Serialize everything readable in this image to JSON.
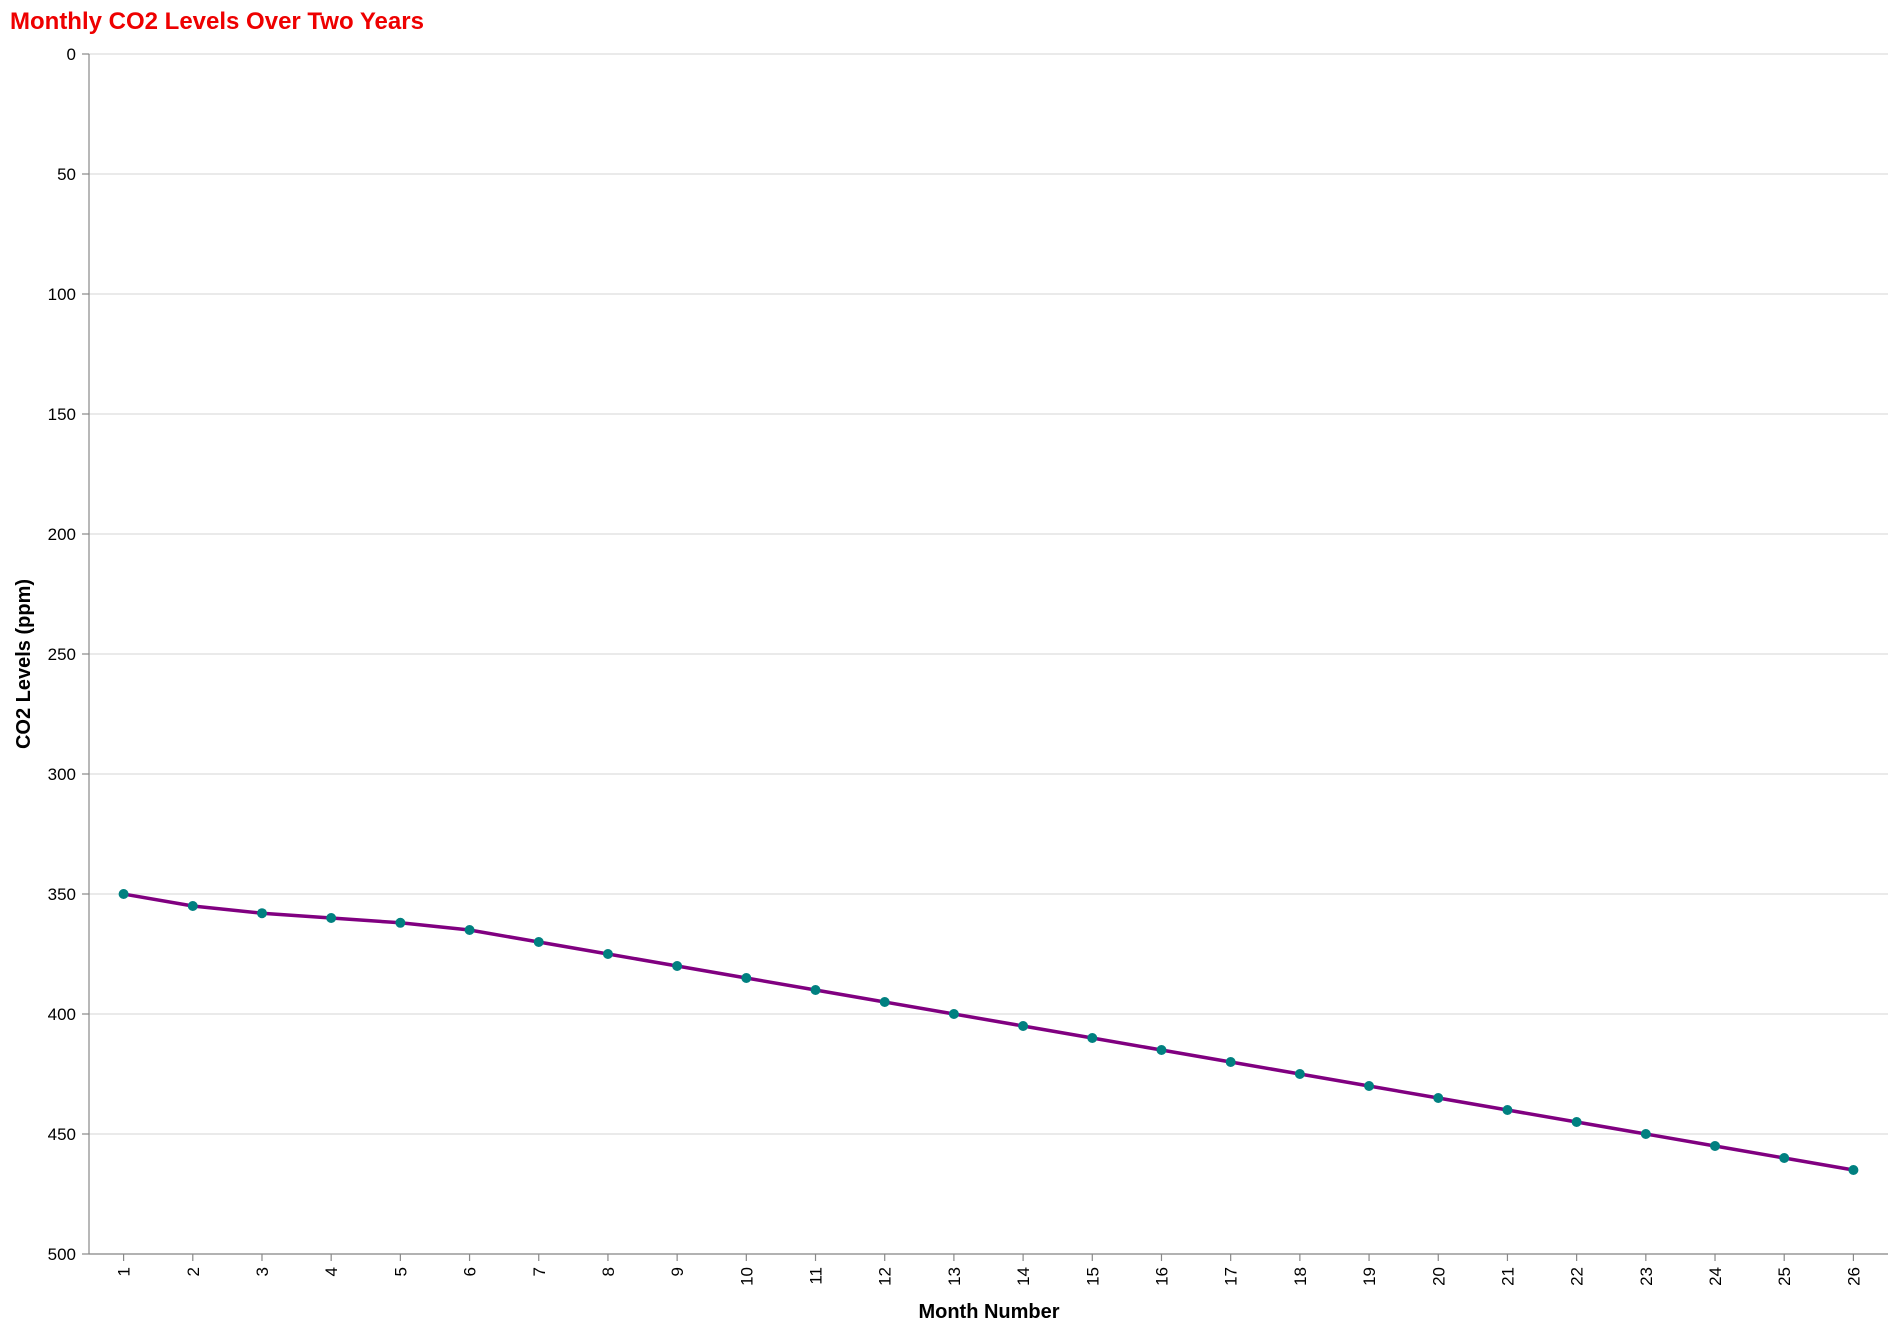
{
  "chart_data": {
    "type": "line",
    "title": "Monthly CO2 Levels Over Two Years",
    "xlabel": "Month Number",
    "ylabel": "CO2 Levels (ppm)",
    "x": [
      1,
      2,
      3,
      4,
      5,
      6,
      7,
      8,
      9,
      10,
      11,
      12,
      13,
      14,
      15,
      16,
      17,
      18,
      19,
      20,
      21,
      22,
      23,
      24,
      25,
      26
    ],
    "series": [
      {
        "values": [
          350,
          355,
          358,
          360,
          362,
          365,
          370,
          375,
          380,
          385,
          390,
          395,
          400,
          405,
          410,
          415,
          420,
          425,
          430,
          435,
          440,
          445,
          450,
          455,
          460,
          465
        ]
      }
    ],
    "ylim": [
      0,
      500
    ],
    "y_reversed": true,
    "yticks": [
      0,
      50,
      100,
      150,
      200,
      250,
      300,
      350,
      400,
      450,
      500
    ],
    "grid": "horizontal",
    "colors": {
      "title": "#ee0000",
      "line": "#800080",
      "point": "#008080",
      "grid": "#dddddd",
      "axis": "#888888"
    }
  }
}
